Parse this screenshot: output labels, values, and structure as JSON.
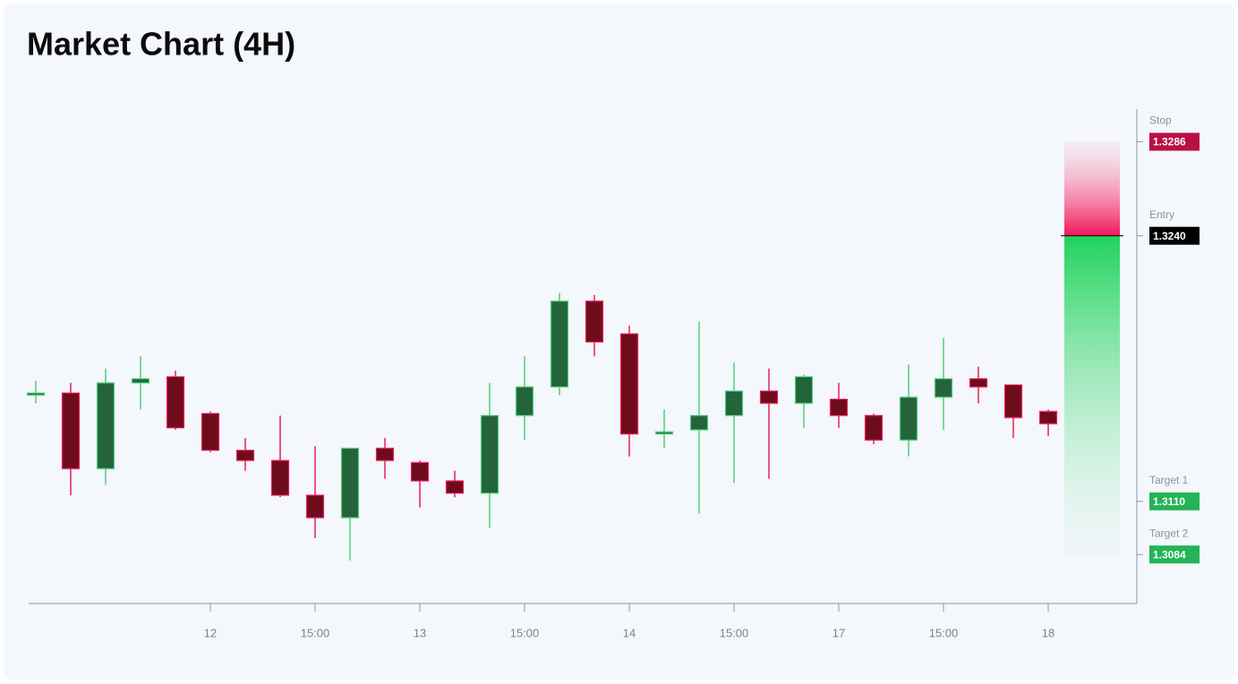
{
  "chart_data": {
    "type": "candlestick",
    "title": "Market Chart (4H)",
    "categories": [
      null,
      null,
      null,
      null,
      null,
      "12",
      null,
      null,
      "15:00",
      null,
      null,
      "13",
      null,
      null,
      "15:00",
      null,
      null,
      "14",
      null,
      null,
      "15:00",
      null,
      null,
      "17",
      null,
      null,
      "15:00",
      null,
      null,
      "18"
    ],
    "open": [
      1.3162,
      1.3163,
      1.3126,
      1.3168,
      1.3171,
      1.3153,
      1.3135,
      1.313,
      1.3113,
      1.3102,
      1.3136,
      1.3129,
      1.312,
      1.3114,
      1.3152,
      1.3166,
      1.3208,
      1.3192,
      1.3143,
      1.3145,
      1.3152,
      1.3164,
      1.3158,
      1.316,
      1.3152,
      1.314,
      1.3161,
      1.317,
      1.3167,
      1.3154
    ],
    "high": [
      1.3169,
      1.3168,
      1.3175,
      1.3181,
      1.3174,
      1.3154,
      1.3141,
      1.3152,
      1.3137,
      1.3136,
      1.3141,
      1.313,
      1.3125,
      1.3168,
      1.3181,
      1.3212,
      1.3211,
      1.3196,
      1.3155,
      1.3198,
      1.3178,
      1.3175,
      1.3172,
      1.3168,
      1.3153,
      1.3177,
      1.319,
      1.3176,
      1.3167,
      1.3155
    ],
    "low": [
      1.3158,
      1.3113,
      1.3118,
      1.3155,
      1.3145,
      1.3134,
      1.3125,
      1.3112,
      1.3092,
      1.3081,
      1.3121,
      1.3107,
      1.3112,
      1.3097,
      1.314,
      1.3162,
      1.3181,
      1.3132,
      1.3136,
      1.3104,
      1.3119,
      1.3121,
      1.3146,
      1.3146,
      1.3138,
      1.3132,
      1.3145,
      1.3158,
      1.3141,
      1.3142
    ],
    "close": [
      1.3163,
      1.3126,
      1.3168,
      1.317,
      1.3146,
      1.3135,
      1.313,
      1.3113,
      1.3102,
      1.3136,
      1.313,
      1.312,
      1.3114,
      1.3152,
      1.3166,
      1.3208,
      1.3188,
      1.3143,
      1.3144,
      1.3152,
      1.3164,
      1.3158,
      1.3171,
      1.3152,
      1.314,
      1.3161,
      1.317,
      1.3166,
      1.3151,
      1.3148
    ],
    "up_color": "#25633a",
    "up_wick": "#4cd07d",
    "down_color": "#6e0c1c",
    "down_wick": "#e8215c",
    "ylim": [
      1.306,
      1.3302
    ],
    "levels": {
      "names": [
        "Stop",
        "Entry",
        "Target 1",
        "Target 2"
      ],
      "values": [
        1.3286,
        1.324,
        1.311,
        1.3084
      ],
      "value_labels": [
        "1.3286",
        "1.3240",
        "1.3110",
        "1.3084"
      ],
      "colors": [
        "#b80f44",
        "#000000",
        "#22b455",
        "#22b455"
      ]
    }
  }
}
